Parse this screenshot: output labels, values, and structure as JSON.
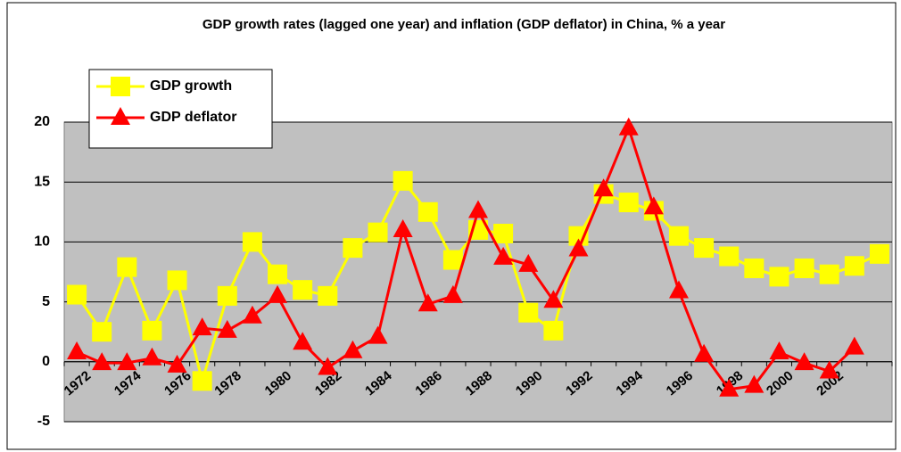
{
  "chart_data": {
    "type": "line",
    "title": "GDP growth rates (lagged one year)  and inflation (GDP deflator) in China, % a year",
    "categories": [
      "1972",
      null,
      "1974",
      null,
      "1976",
      null,
      "1978",
      null,
      "1980",
      null,
      "1982",
      null,
      "1984",
      null,
      "1986",
      null,
      "1988",
      null,
      "1990",
      null,
      "1992",
      null,
      "1994",
      null,
      "1996",
      null,
      "1998",
      null,
      "2000",
      null,
      "2002",
      null,
      null
    ],
    "series": [
      {
        "name": "GDP growth",
        "color": "#ffff00",
        "marker": "square",
        "values": [
          5.6,
          2.5,
          7.9,
          2.6,
          6.8,
          -1.6,
          5.5,
          10.0,
          7.3,
          6.0,
          5.5,
          9.5,
          10.8,
          15.1,
          12.5,
          8.5,
          11.0,
          10.7,
          4.1,
          2.6,
          10.5,
          14.0,
          13.3,
          12.6,
          10.5,
          9.5,
          8.8,
          7.8,
          7.1,
          7.8,
          7.3,
          8.0,
          9.0
        ]
      },
      {
        "name": "GDP deflator",
        "color": "#ff0000",
        "marker": "triangle",
        "values": [
          0.8,
          -0.1,
          -0.1,
          0.3,
          -0.3,
          2.8,
          2.6,
          3.8,
          5.5,
          1.6,
          -0.5,
          0.9,
          2.1,
          11.0,
          4.8,
          5.5,
          12.6,
          8.7,
          8.1,
          5.1,
          9.4,
          14.4,
          19.5,
          12.9,
          5.9,
          0.6,
          -2.3,
          -2.0,
          0.8,
          -0.1,
          -0.8,
          1.2,
          null
        ]
      }
    ],
    "ylim": [
      -5,
      20
    ],
    "yticks": [
      -5,
      0,
      5,
      10,
      15,
      20
    ],
    "grid": true,
    "legend": "upper left"
  }
}
